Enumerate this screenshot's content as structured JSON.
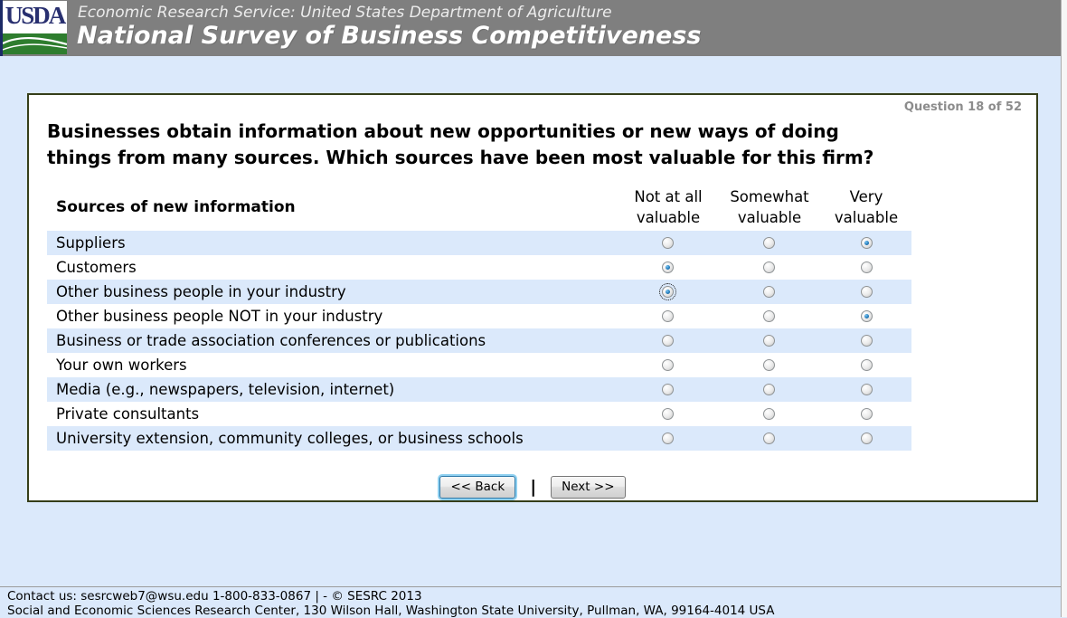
{
  "header": {
    "logo_text": "USDA",
    "agency_line": "Economic Research Service: United States Department of Agriculture",
    "survey_title": "National Survey of Business Competitiveness"
  },
  "question": {
    "counter": "Question 18 of 52",
    "line1": "Businesses obtain information about new opportunities or new ways of doing",
    "line2": "things from many sources. Which sources have been most valuable for this firm?"
  },
  "table": {
    "row_header": "Sources of new information",
    "columns": [
      {
        "id": "not",
        "label_lines": [
          "Not at all",
          "valuable"
        ]
      },
      {
        "id": "somewhat",
        "label_lines": [
          "Somewhat",
          "valuable"
        ]
      },
      {
        "id": "very",
        "label_lines": [
          "Very",
          "valuable"
        ]
      }
    ],
    "rows": [
      {
        "label": "Suppliers",
        "selected": "very",
        "focused": null
      },
      {
        "label": "Customers",
        "selected": "not",
        "focused": null
      },
      {
        "label": "Other business people in your industry",
        "selected": "not",
        "focused": "not"
      },
      {
        "label": "Other business people NOT in your industry",
        "selected": "very",
        "focused": null
      },
      {
        "label": "Business or trade association conferences or publications",
        "selected": null,
        "focused": null
      },
      {
        "label": "Your own workers",
        "selected": null,
        "focused": null
      },
      {
        "label": "Media (e.g., newspapers, television, internet)",
        "selected": null,
        "focused": null
      },
      {
        "label": "Private consultants",
        "selected": null,
        "focused": null
      },
      {
        "label": "University extension, community colleges, or business schools",
        "selected": null,
        "focused": null
      }
    ]
  },
  "buttons": {
    "back": "<< Back",
    "separator": "|",
    "next": "Next >>"
  },
  "footer": {
    "line1": "Contact us: sesrcweb7@wsu.edu 1-800-833-0867 | - © SESRC 2013",
    "line2": "Social and Economic Sciences Research Center, 130 Wilson Hall, Washington State University, Pullman, WA, 99164-4014 USA"
  },
  "colors": {
    "header_gray": "#7f7f7f",
    "page_blue": "#dbe9fb",
    "row_stripe_blue": "#dbe9fb",
    "box_border_olive": "#353e19",
    "counter_gray": "#8c8c8c",
    "radio_selected_blue": "#0b4c82",
    "back_button_focus_blue": "#8ed0f0",
    "usda_navy": "#282f6f",
    "usda_green": "#2e7d2e"
  }
}
